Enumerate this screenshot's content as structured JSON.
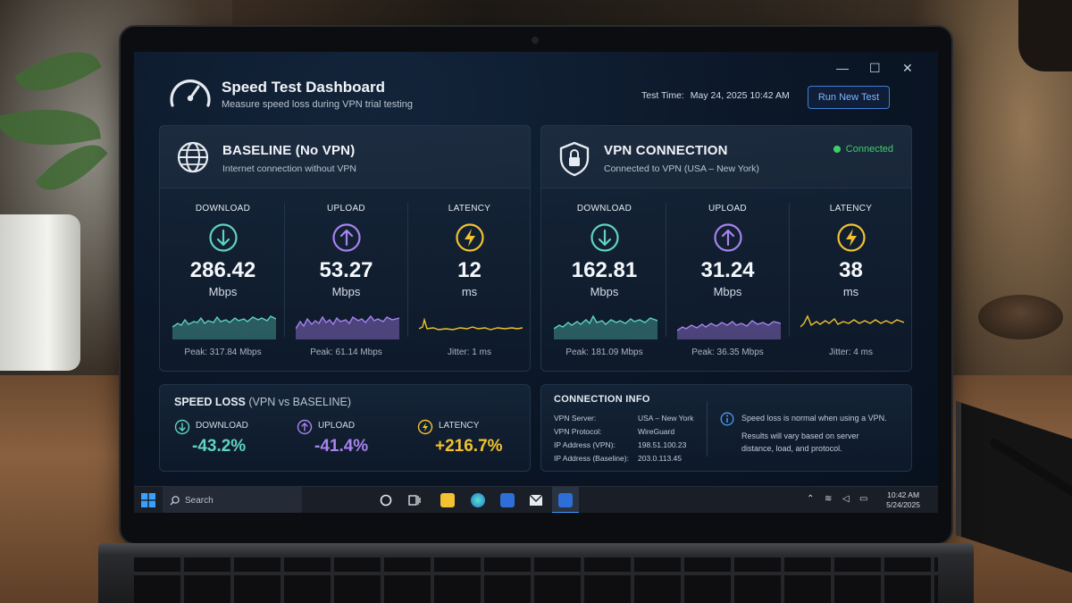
{
  "header": {
    "title": "Speed Test Dashboard",
    "subtitle": "Measure speed loss during VPN trial testing",
    "test_time_label": "Test Time:",
    "test_time_value": "May 24, 2025 10:42 AM",
    "run_button": "Run New Test"
  },
  "window_controls": {
    "minimize": "—",
    "maximize": "☐",
    "close": "✕"
  },
  "baseline": {
    "title": "BASELINE (No VPN)",
    "subtitle": "Internet connection without VPN",
    "icon": "globe-icon",
    "metrics": [
      {
        "label": "DOWNLOAD",
        "value": "286.42",
        "unit": "Mbps",
        "footer": "Peak: 317.84 Mbps",
        "color": "#5fd3c4",
        "icon": "arrow-down-icon"
      },
      {
        "label": "UPLOAD",
        "value": "53.27",
        "unit": "Mbps",
        "footer": "Peak: 61.14 Mbps",
        "color": "#a783f0",
        "icon": "arrow-up-icon"
      },
      {
        "label": "LATENCY",
        "value": "12",
        "unit": "ms",
        "footer": "Jitter: 1 ms",
        "color": "#f2c230",
        "icon": "lightning-icon"
      }
    ]
  },
  "vpn": {
    "title": "VPN CONNECTION",
    "subtitle": "Connected to VPN (USA – New York)",
    "status": "Connected",
    "status_color": "#3ecf6a",
    "icon": "shield-lock-icon",
    "metrics": [
      {
        "label": "DOWNLOAD",
        "value": "162.81",
        "unit": "Mbps",
        "footer": "Peak: 181.09 Mbps",
        "color": "#5fd3c4",
        "icon": "arrow-down-icon"
      },
      {
        "label": "UPLOAD",
        "value": "31.24",
        "unit": "Mbps",
        "footer": "Peak: 36.35 Mbps",
        "color": "#a783f0",
        "icon": "arrow-up-icon"
      },
      {
        "label": "LATENCY",
        "value": "38",
        "unit": "ms",
        "footer": "Jitter: 4 ms",
        "color": "#f2c230",
        "icon": "lightning-icon"
      }
    ]
  },
  "speed_loss": {
    "title": "SPEED LOSS",
    "title_suffix": "(VPN vs BASELINE)",
    "items": [
      {
        "label": "DOWNLOAD",
        "value": "-43.2%",
        "color": "#5fd3c4"
      },
      {
        "label": "UPLOAD",
        "value": "-41.4%",
        "color": "#a783f0"
      },
      {
        "label": "LATENCY",
        "value": "+216.7%",
        "color": "#f2c230"
      }
    ]
  },
  "connection_info": {
    "title": "CONNECTION INFO",
    "rows": [
      {
        "key": "VPN Server:",
        "value": "USA – New York"
      },
      {
        "key": "VPN Protocol:",
        "value": "WireGuard"
      },
      {
        "key": "IP Address (VPN):",
        "value": "198.51.100.23"
      },
      {
        "key": "IP Address (Baseline):",
        "value": "203.0.113.45"
      }
    ],
    "note_line1": "Speed loss is normal when using a VPN.",
    "note_line2": "Results will vary based on server",
    "note_line3": "distance, load, and protocol."
  },
  "taskbar": {
    "search_placeholder": "Search",
    "time": "10:42 AM",
    "date": "5/24/2025"
  }
}
